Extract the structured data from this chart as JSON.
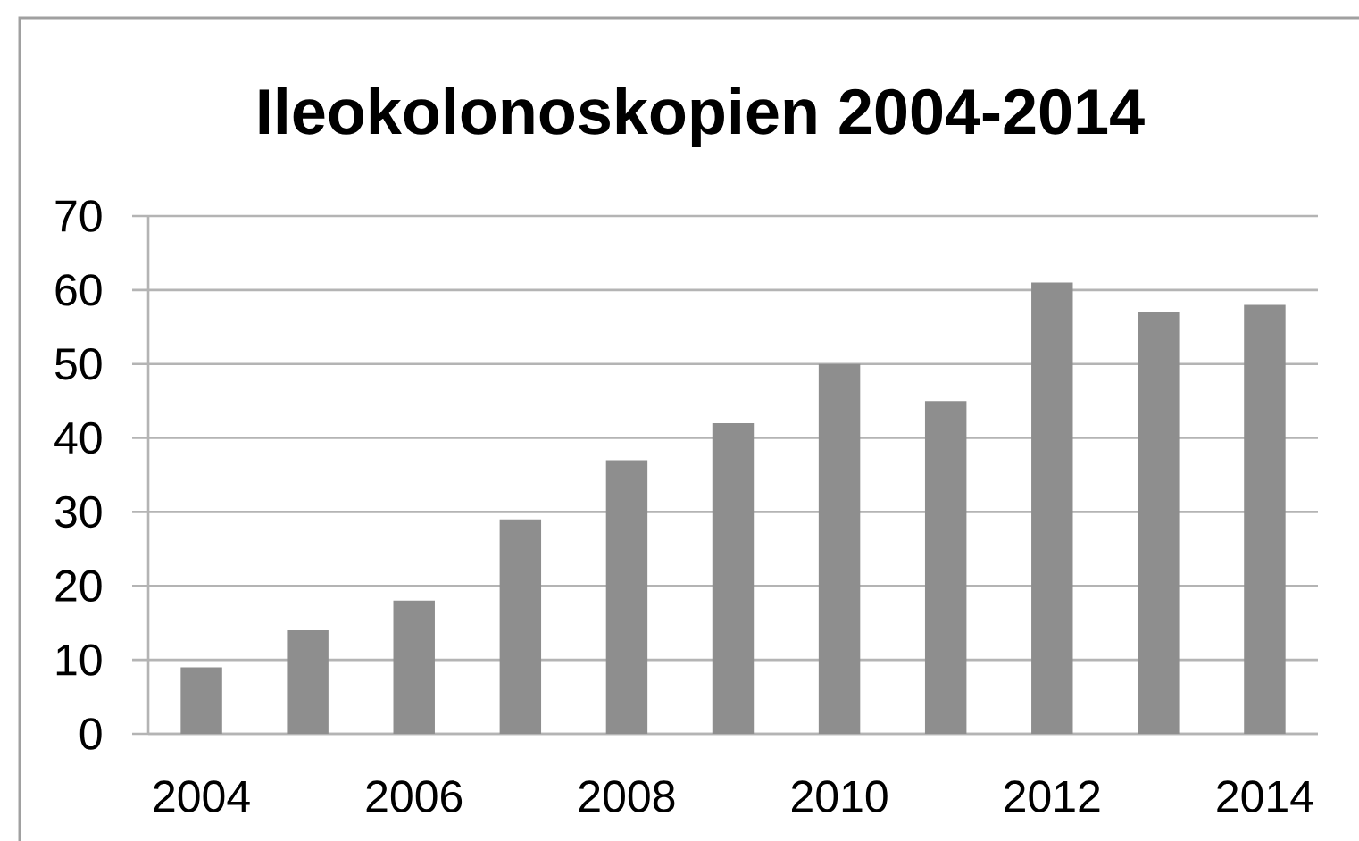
{
  "chart_data": {
    "type": "bar",
    "title": "Ileokolonoskopien 2004-2014",
    "categories": [
      "2004",
      null,
      "2006",
      null,
      "2008",
      null,
      "2010",
      null,
      "2012",
      null,
      "2014"
    ],
    "values": [
      9,
      14,
      18,
      29,
      37,
      42,
      50,
      45,
      61,
      57,
      58
    ],
    "color": "#8e8e8e",
    "ylim": [
      0,
      70
    ],
    "yticks": [
      0,
      10,
      20,
      30,
      40,
      50,
      60,
      70
    ],
    "grid": "y"
  }
}
